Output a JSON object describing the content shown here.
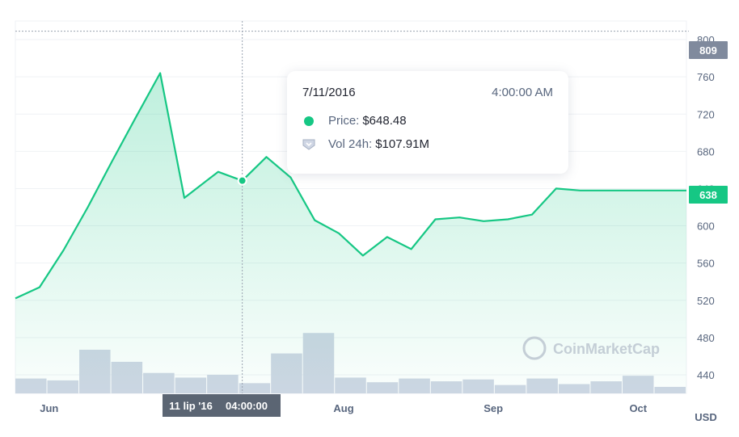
{
  "chart_data": {
    "type": "line",
    "series": [
      {
        "name": "Price",
        "x": [
          "5/25/2016",
          "5/30/2016",
          "6/4/2016",
          "6/9/2016",
          "6/14/2016",
          "6/19/2016",
          "6/24/2016",
          "6/29/2016",
          "7/6/2016",
          "7/11/2016",
          "7/16/2016",
          "7/21/2016",
          "7/26/2016",
          "7/31/2016",
          "8/5/2016",
          "8/10/2016",
          "8/15/2016",
          "8/20/2016",
          "8/25/2016",
          "8/30/2016",
          "9/4/2016",
          "9/9/2016",
          "9/14/2016",
          "9/19/2016",
          "9/24/2016",
          "9/29/2016",
          "10/4/2016",
          "10/9/2016",
          "10/11/2016"
        ],
        "values": [
          522,
          534,
          574,
          620,
          669,
          717,
          764,
          630,
          658,
          648.48,
          674,
          652,
          606,
          592,
          568,
          588,
          575,
          607,
          609,
          605,
          607,
          612,
          640,
          638,
          638,
          638,
          638,
          638,
          638
        ]
      }
    ],
    "volume_bars": {
      "name": "Vol 24h",
      "values": [
        0.16,
        0.14,
        0.47,
        0.34,
        0.22,
        0.17,
        0.2,
        0.11,
        0.43,
        0.65,
        0.17,
        0.12,
        0.16,
        0.13,
        0.15,
        0.09,
        0.16,
        0.1,
        0.13,
        0.19,
        0.07
      ]
    },
    "y_ticks": [
      "440",
      "480",
      "520",
      "560",
      "600",
      "640",
      "680",
      "720",
      "760",
      "800"
    ],
    "y_range": [
      420,
      820
    ],
    "x_ticks": [
      "Jun",
      "Aug",
      "Sep",
      "Oct"
    ],
    "y_unit": "USD",
    "max_value": 809,
    "last_value": 638,
    "cursor": {
      "label_date": "11 lip '16",
      "label_time": "04:00:00"
    },
    "tooltip": {
      "date": "7/11/2016",
      "time": "4:00:00 AM",
      "price_label": "Price:",
      "price_value": "$648.48",
      "volume_label": "Vol 24h:",
      "volume_value": "$107.91M"
    },
    "watermark": "CoinMarketCap",
    "colors": {
      "line": "#16c784",
      "badge_last": "#16c784",
      "badge_max": "#808a9d",
      "cursor_label": "#5b6573",
      "volume": "#cfd6e4"
    }
  }
}
